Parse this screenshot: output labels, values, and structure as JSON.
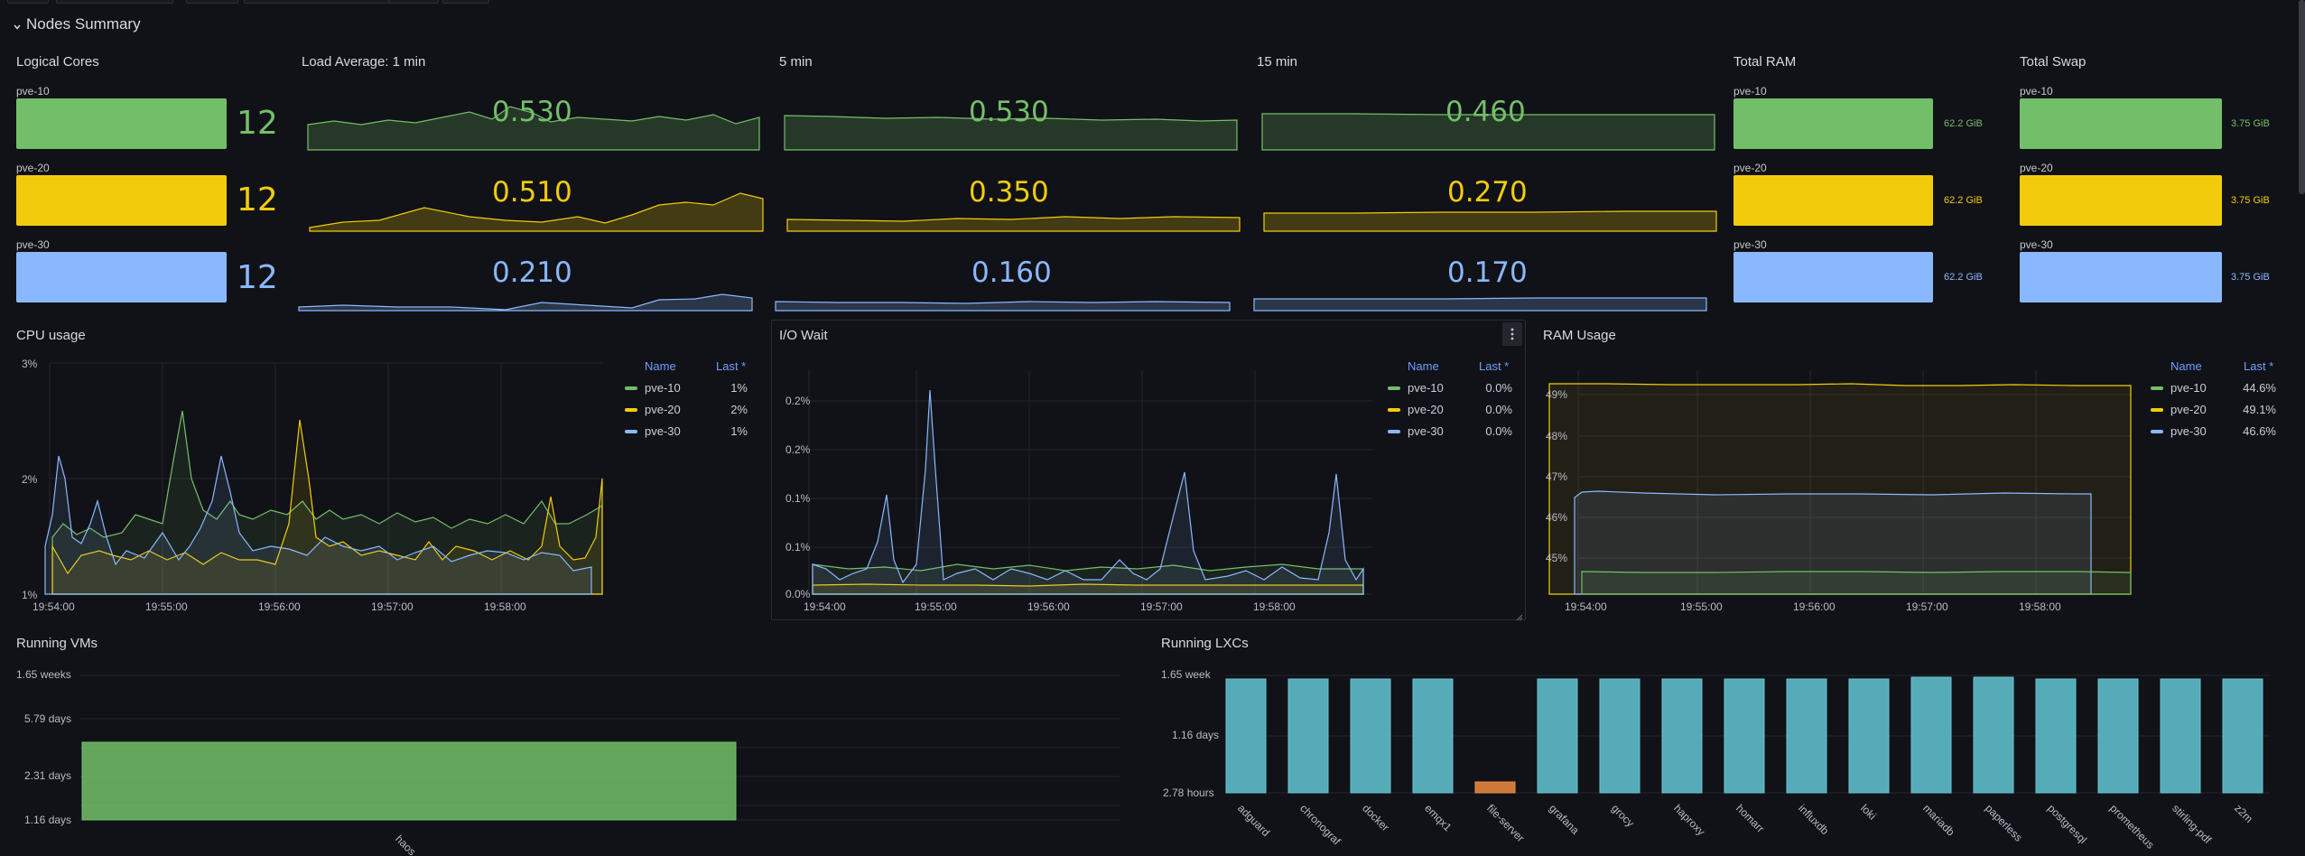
{
  "row_title": "Nodes Summary",
  "colors": {
    "green": "#73bf69",
    "yellow": "#f2cc0c",
    "blue": "#8ab8ff",
    "teal": "#5ab4c1",
    "orange": "#d9803a",
    "bg": "#111217"
  },
  "nodes": [
    "pve-10",
    "pve-20",
    "pve-30"
  ],
  "logical_cores": {
    "title": "Logical Cores",
    "values": [
      "12",
      "12",
      "12"
    ]
  },
  "load": {
    "title_1m": "Load Average: 1 min",
    "title_5m": "5 min",
    "title_15m": "15 min",
    "one": [
      "0.530",
      "0.510",
      "0.210"
    ],
    "five": [
      "0.530",
      "0.350",
      "0.160"
    ],
    "fifteen": [
      "0.460",
      "0.270",
      "0.170"
    ]
  },
  "total_ram": {
    "title": "Total RAM",
    "values": [
      "62.2 GiB",
      "62.2 GiB",
      "62.2 GiB"
    ]
  },
  "total_swap": {
    "title": "Total Swap",
    "values": [
      "3.75 GiB",
      "3.75 GiB",
      "3.75 GiB"
    ]
  },
  "cpu": {
    "title": "CPU usage",
    "legend_name": "Name",
    "legend_last": "Last *",
    "last": [
      "1%",
      "2%",
      "1%"
    ],
    "yticks": [
      "3%",
      "2%",
      "1%"
    ],
    "xticks": [
      "19:54:00",
      "19:55:00",
      "19:56:00",
      "19:57:00",
      "19:58:00"
    ]
  },
  "iowait": {
    "title": "I/O Wait",
    "legend_name": "Name",
    "legend_last": "Last *",
    "last": [
      "0.0%",
      "0.0%",
      "0.0%"
    ],
    "yticks": [
      "0.2%",
      "0.2%",
      "0.1%",
      "0.1%",
      "0.0%"
    ],
    "xticks": [
      "19:54:00",
      "19:55:00",
      "19:56:00",
      "19:57:00",
      "19:58:00"
    ],
    "menu_icon": "kebab-menu-icon"
  },
  "ram": {
    "title": "RAM Usage",
    "legend_name": "Name",
    "legend_last": "Last *",
    "last": [
      "44.6%",
      "49.1%",
      "46.6%"
    ],
    "yticks": [
      "49%",
      "48%",
      "47%",
      "46%",
      "45%"
    ],
    "xticks": [
      "19:54:00",
      "19:55:00",
      "19:56:00",
      "19:57:00",
      "19:58:00"
    ]
  },
  "running_vms": {
    "title": "Running VMs",
    "yticks": [
      "1.65 weeks",
      "5.79 days",
      "2.31 days",
      "1.16 days"
    ],
    "categories": [
      "haos"
    ]
  },
  "running_lxcs": {
    "title": "Running LXCs",
    "yticks": [
      "1.65 week",
      "1.16 days",
      "2.78 hours"
    ],
    "categories": [
      "adguard",
      "chronograf",
      "docker",
      "emqx1",
      "file-server",
      "grafana",
      "grocy",
      "haproxy",
      "homarr",
      "influxdb",
      "loki",
      "mariadb",
      "paperless",
      "postgresql",
      "prometheus",
      "stirling-pdf",
      "z2m"
    ]
  }
}
